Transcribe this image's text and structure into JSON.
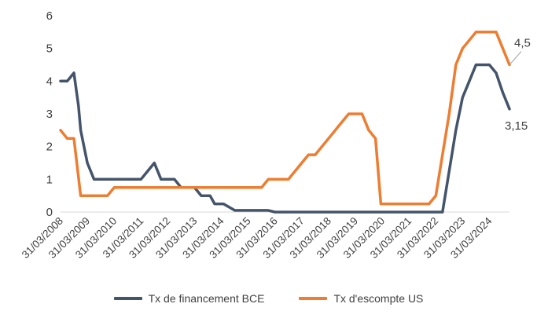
{
  "chart_data": {
    "type": "line",
    "ylim": [
      0,
      6
    ],
    "yticks": [
      "0",
      "1",
      "2",
      "3",
      "4",
      "5",
      "6"
    ],
    "x_tick_labels": [
      "31/03/2008",
      "31/03/2009",
      "31/03/2010",
      "31/03/2011",
      "31/03/2012",
      "31/03/2013",
      "31/03/2014",
      "31/03/2015",
      "31/03/2016",
      "31/03/2017",
      "31/03/2018",
      "31/03/2019",
      "31/03/2020",
      "31/03/2021",
      "31/03/2022",
      "31/03/2023",
      "31/03/2024"
    ],
    "grid": false,
    "legend_position": "bottom",
    "series": [
      {
        "name": "Tx de financement BCE",
        "color": "#44546a",
        "points": [
          [
            2008.25,
            4.0
          ],
          [
            2008.5,
            4.0
          ],
          [
            2008.75,
            4.25
          ],
          [
            2008.92,
            3.25
          ],
          [
            2009.0,
            2.5
          ],
          [
            2009.25,
            1.5
          ],
          [
            2009.5,
            1.0
          ],
          [
            2011.25,
            1.0
          ],
          [
            2011.5,
            1.25
          ],
          [
            2011.75,
            1.5
          ],
          [
            2012.0,
            1.0
          ],
          [
            2012.5,
            1.0
          ],
          [
            2012.75,
            0.75
          ],
          [
            2013.25,
            0.75
          ],
          [
            2013.5,
            0.5
          ],
          [
            2013.83,
            0.5
          ],
          [
            2014.0,
            0.25
          ],
          [
            2014.33,
            0.25
          ],
          [
            2014.75,
            0.05
          ],
          [
            2016.0,
            0.05
          ],
          [
            2016.25,
            0.0
          ],
          [
            2022.5,
            0.0
          ],
          [
            2022.75,
            1.25
          ],
          [
            2023.0,
            2.5
          ],
          [
            2023.25,
            3.5
          ],
          [
            2023.5,
            4.0
          ],
          [
            2023.75,
            4.5
          ],
          [
            2024.25,
            4.5
          ],
          [
            2024.5,
            4.25
          ],
          [
            2024.75,
            3.65
          ],
          [
            2025.0,
            3.15
          ]
        ],
        "end_label": "3,15"
      },
      {
        "name": "Tx d'escompte US",
        "color": "#ed7d31",
        "points": [
          [
            2008.25,
            2.5
          ],
          [
            2008.5,
            2.25
          ],
          [
            2008.75,
            2.25
          ],
          [
            2009.0,
            0.5
          ],
          [
            2010.0,
            0.5
          ],
          [
            2010.25,
            0.75
          ],
          [
            2015.75,
            0.75
          ],
          [
            2016.0,
            1.0
          ],
          [
            2016.75,
            1.0
          ],
          [
            2017.0,
            1.25
          ],
          [
            2017.25,
            1.5
          ],
          [
            2017.5,
            1.75
          ],
          [
            2017.75,
            1.75
          ],
          [
            2018.0,
            2.0
          ],
          [
            2018.25,
            2.25
          ],
          [
            2018.5,
            2.5
          ],
          [
            2018.75,
            2.75
          ],
          [
            2019.0,
            3.0
          ],
          [
            2019.5,
            3.0
          ],
          [
            2019.75,
            2.5
          ],
          [
            2020.0,
            2.25
          ],
          [
            2020.2,
            0.25
          ],
          [
            2022.0,
            0.25
          ],
          [
            2022.25,
            0.5
          ],
          [
            2022.5,
            1.75
          ],
          [
            2022.75,
            3.0
          ],
          [
            2023.0,
            4.5
          ],
          [
            2023.25,
            5.0
          ],
          [
            2023.75,
            5.5
          ],
          [
            2024.5,
            5.5
          ],
          [
            2024.75,
            5.0
          ],
          [
            2025.0,
            4.5
          ]
        ],
        "end_label": "4,5"
      }
    ]
  }
}
